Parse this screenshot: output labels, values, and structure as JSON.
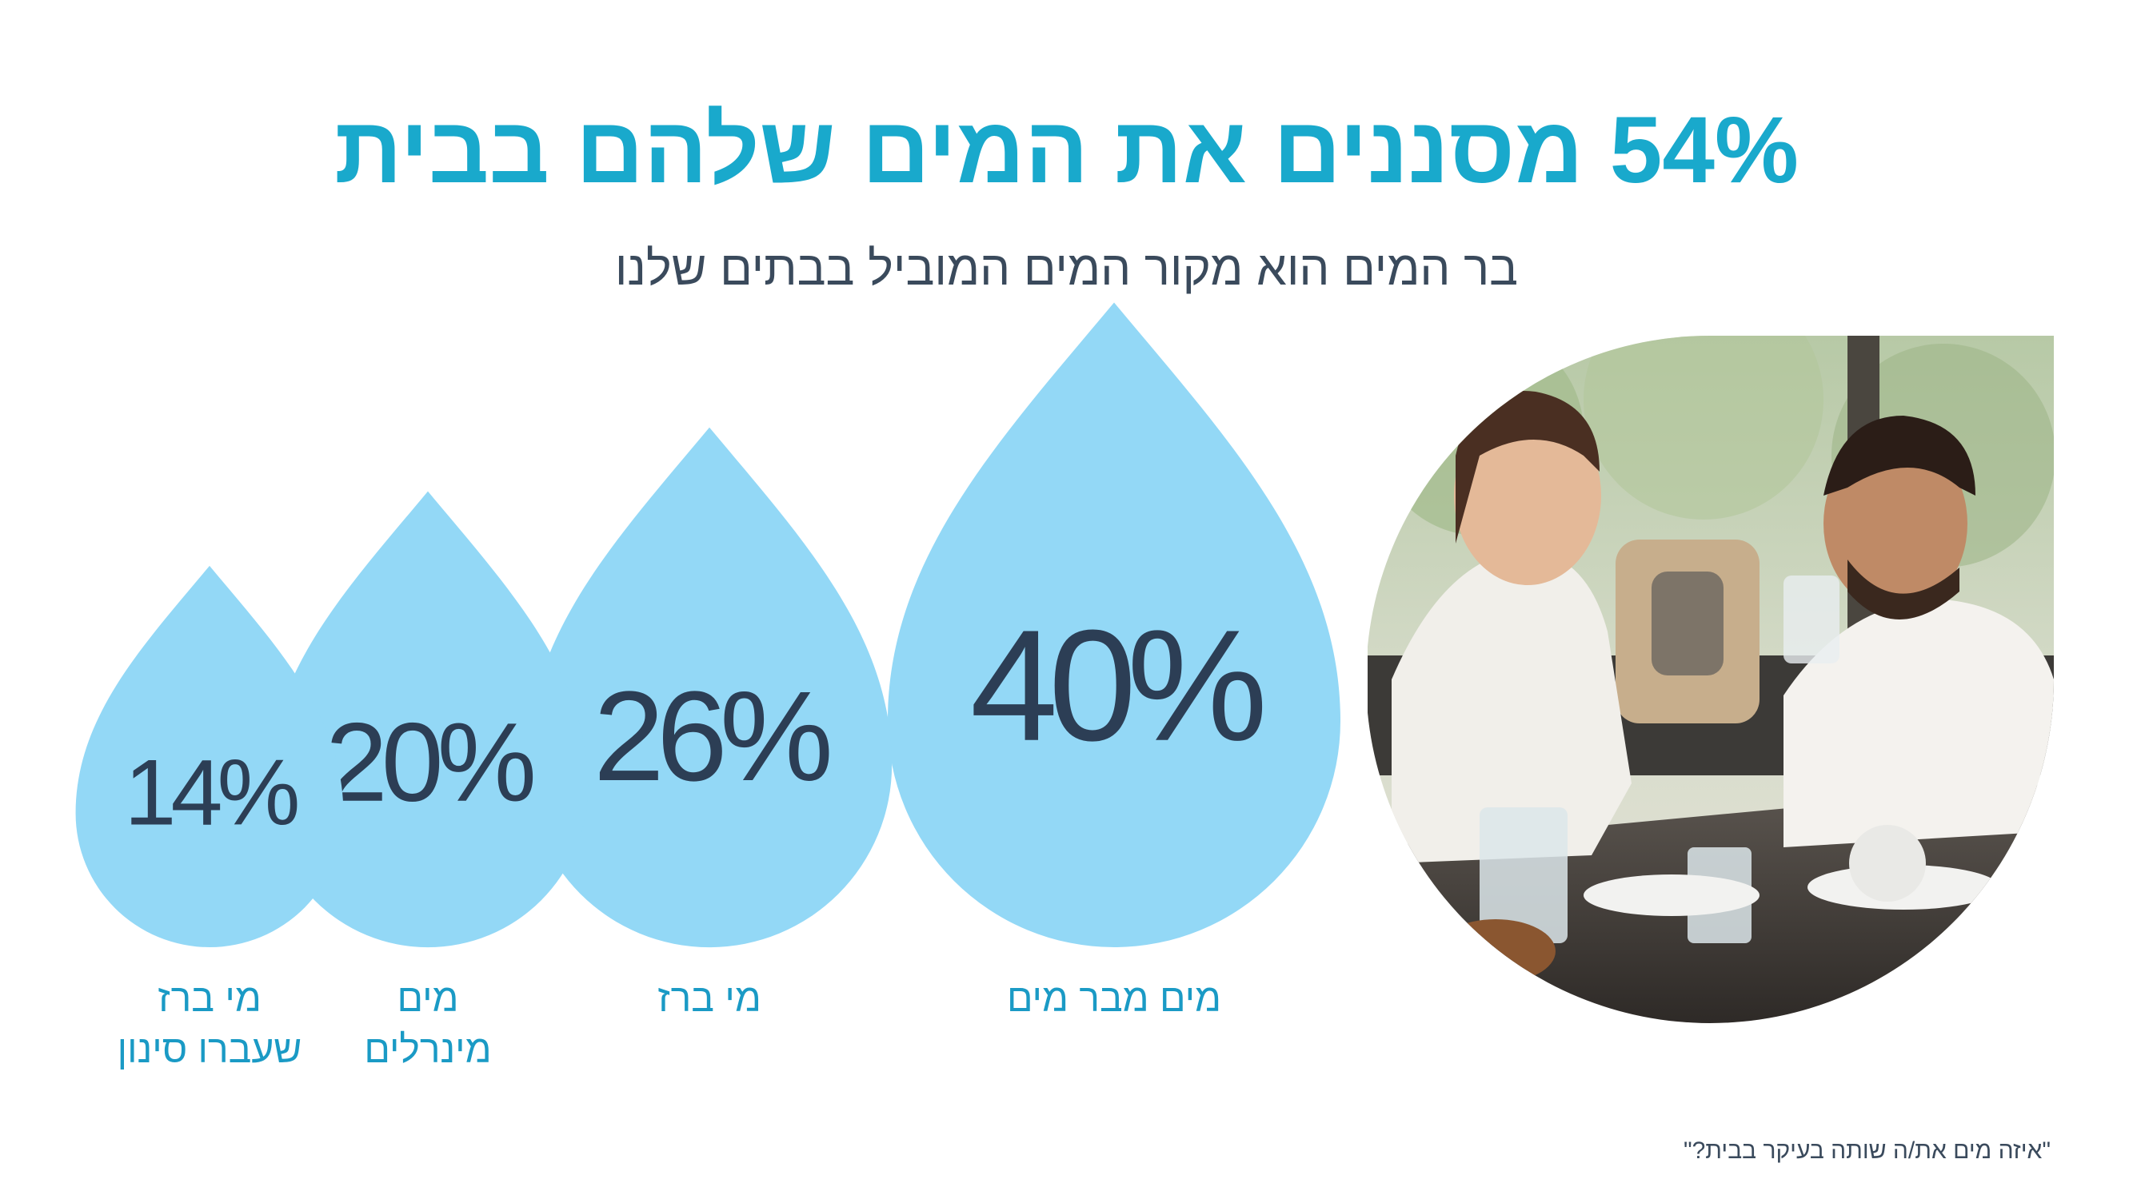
{
  "header": {
    "title": "54% מסננים את המים שלהם בבית",
    "subtitle": "בר המים הוא מקור המים המוביל בבתים שלנו"
  },
  "chart_data": {
    "type": "bubble",
    "categories": [
      "מים מבר מים",
      "מי ברז",
      "מים מינרלים",
      "מי ברז שעברו סינון"
    ],
    "values": [
      40,
      26,
      20,
      14
    ],
    "value_labels": [
      "40%",
      "26%",
      "20%",
      "14%"
    ],
    "label_lines": [
      [
        "מים מבר מים"
      ],
      [
        "מי ברז"
      ],
      [
        "מים",
        "מינרלים"
      ],
      [
        "מי ברז",
        "שעברו סינון"
      ]
    ],
    "unit": "%",
    "shape": "water-drop"
  },
  "colors": {
    "title": "#19a9cc",
    "subtitle": "#3a4a5c",
    "drop_fill": "#93d8f6",
    "value_text": "#2c3e55",
    "category_text": "#1a9ac5",
    "footnote": "#3a4a5c"
  },
  "photo": {
    "icon": "couple-drinking-water-photo"
  },
  "footnote": "\"איזה מים את/ה שותה בעיקר בבית?\""
}
